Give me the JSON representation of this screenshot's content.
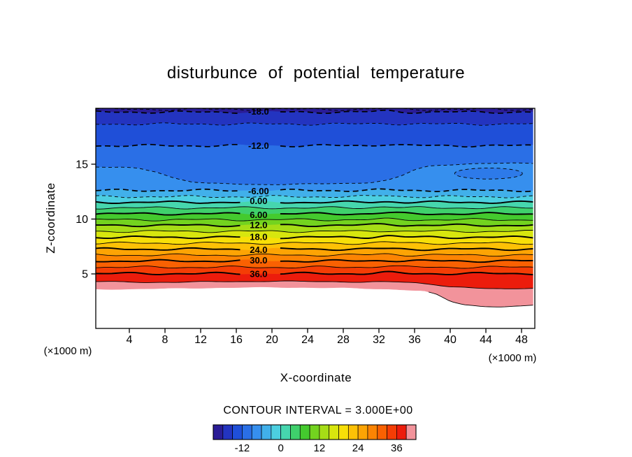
{
  "page": {
    "background": "#ffffff"
  },
  "chart_data": {
    "type": "heatmap",
    "subtype": "filled-contour-cross-section",
    "title": "disturbunce of potential temperature",
    "xlabel": "X-coordinate",
    "ylabel": "Z-coordinate",
    "x_unit_label": "(×1000 m)",
    "y_unit_label": "(×1000 m)",
    "contour_interval_label": "CONTOUR INTERVAL = 3.000E+00",
    "contour_interval": 3.0,
    "xlim": [
      0.2,
      49.5
    ],
    "ylim": [
      0,
      20.1
    ],
    "x_ticks": [
      4,
      8,
      12,
      16,
      20,
      24,
      28,
      32,
      36,
      40,
      44,
      48
    ],
    "y_ticks": [
      5,
      10,
      15
    ],
    "grid": false,
    "levels": [
      {
        "value": -21,
        "z": 20.0,
        "style": "dashed-thin"
      },
      {
        "value": -18,
        "z": 19.75,
        "style": "dashed-heavy",
        "label": "-18.0"
      },
      {
        "value": -15,
        "z": 18.66,
        "style": "dashed-thin"
      },
      {
        "value": -12,
        "z": 16.69,
        "style": "dashed-heavy",
        "label": "-12.0"
      },
      {
        "value": -9,
        "style": "dashed-thin",
        "pts": [
          [
            0.2,
            14.75
          ],
          [
            3,
            14.72
          ],
          [
            5,
            14.6
          ],
          [
            7,
            14.3
          ],
          [
            9,
            13.75
          ],
          [
            11,
            13.4
          ],
          [
            13,
            13.25
          ],
          [
            16,
            13.18
          ],
          [
            19,
            13.15
          ],
          [
            22,
            13.17
          ],
          [
            25,
            13.2
          ],
          [
            28,
            13.25
          ],
          [
            31,
            13.32
          ],
          [
            33,
            13.5
          ],
          [
            34.5,
            13.9
          ],
          [
            36,
            14.5
          ],
          [
            37.5,
            14.82
          ],
          [
            39,
            14.92
          ],
          [
            41,
            15.0
          ],
          [
            44,
            15.05
          ],
          [
            47,
            15.1
          ],
          [
            49.5,
            15.1
          ]
        ]
      },
      {
        "value": -6,
        "z": 12.61,
        "style": "dashed-heavy",
        "label": "-6.00"
      },
      {
        "value": -3,
        "z": 12.04,
        "style": "dashed-thin"
      },
      {
        "value": 0,
        "z": 11.53,
        "style": "solid-heavy",
        "label": "0.00"
      },
      {
        "value": 3,
        "z": 11.02,
        "style": "solid-thin"
      },
      {
        "value": 6,
        "z": 10.48,
        "style": "solid-heavy",
        "label": "6.00"
      },
      {
        "value": 9,
        "z": 9.94,
        "style": "solid-thin"
      },
      {
        "value": 12,
        "z": 9.43,
        "style": "solid-heavy",
        "label": "12.0"
      },
      {
        "value": 15,
        "z": 8.88,
        "style": "solid-thin"
      },
      {
        "value": 18,
        "z": 8.34,
        "style": "solid-heavy",
        "label": "18.0"
      },
      {
        "value": 21,
        "z": 7.8,
        "style": "solid-thin"
      },
      {
        "value": 24,
        "z": 7.26,
        "style": "solid-heavy",
        "label": "24.0"
      },
      {
        "value": 27,
        "z": 6.72,
        "style": "solid-thin"
      },
      {
        "value": 30,
        "z": 6.18,
        "style": "solid-heavy",
        "label": "30.0"
      },
      {
        "value": 33,
        "z": 5.61,
        "style": "solid-thin"
      },
      {
        "value": 36,
        "z": 5.03,
        "style": "solid-heavy",
        "label": "36.0"
      },
      {
        "value": 39,
        "style": "solid-thin",
        "pts": [
          [
            0.2,
            4.3
          ],
          [
            3,
            4.28
          ],
          [
            6,
            4.24
          ],
          [
            9,
            4.22
          ],
          [
            12,
            4.28
          ],
          [
            15,
            4.32
          ],
          [
            18,
            4.3
          ],
          [
            21,
            4.32
          ],
          [
            24,
            4.33
          ],
          [
            27,
            4.3
          ],
          [
            30,
            4.22
          ],
          [
            32,
            4.26
          ],
          [
            34,
            4.28
          ],
          [
            36,
            4.22
          ],
          [
            38,
            4.05
          ],
          [
            40,
            3.8
          ],
          [
            43,
            3.7
          ],
          [
            46,
            3.65
          ],
          [
            49.5,
            3.7
          ]
        ]
      }
    ],
    "minus9_closed_loop": {
      "cx": 44.3,
      "cz": 14.15,
      "rx": 3.8,
      "rz": 0.5
    },
    "fill_lower_boundary": [
      [
        0.2,
        3.6
      ],
      [
        4,
        3.62
      ],
      [
        8,
        3.66
      ],
      [
        12,
        3.72
      ],
      [
        16,
        3.76
      ],
      [
        20,
        3.78
      ],
      [
        24,
        3.76
      ],
      [
        28,
        3.72
      ],
      [
        32,
        3.62
      ],
      [
        35,
        3.55
      ],
      [
        37,
        3.45
      ],
      [
        38.5,
        3.1
      ],
      [
        40,
        2.5
      ],
      [
        41.5,
        2.2
      ],
      [
        43.5,
        2.05
      ],
      [
        46,
        2.0
      ],
      [
        48,
        2.05
      ],
      [
        49.5,
        2.15
      ]
    ],
    "band_levels": [
      -21,
      -18,
      -15,
      -12,
      -9,
      -6,
      -3,
      0,
      3,
      6,
      9,
      12,
      15,
      18,
      21,
      24,
      27,
      30,
      33,
      36,
      39,
      42
    ],
    "band_colors": [
      "#2a1c96",
      "#2334c0",
      "#1f4fd8",
      "#2a6fe6",
      "#368fee",
      "#41b0ea",
      "#4ccfe0",
      "#46d6ae",
      "#3fd06c",
      "#44ca2e",
      "#73d31f",
      "#a6dd16",
      "#d8e60e",
      "#f7df08",
      "#fdc106",
      "#fda404",
      "#fc8403",
      "#f96102",
      "#f43d05",
      "#ec1c0c",
      "#f2939b"
    ],
    "colorbar": {
      "min": -21,
      "max": 42,
      "tick_values": [
        -12,
        0,
        12,
        24,
        36
      ],
      "tick_labels": [
        "-12",
        "0",
        "12",
        "24",
        "36"
      ]
    }
  }
}
